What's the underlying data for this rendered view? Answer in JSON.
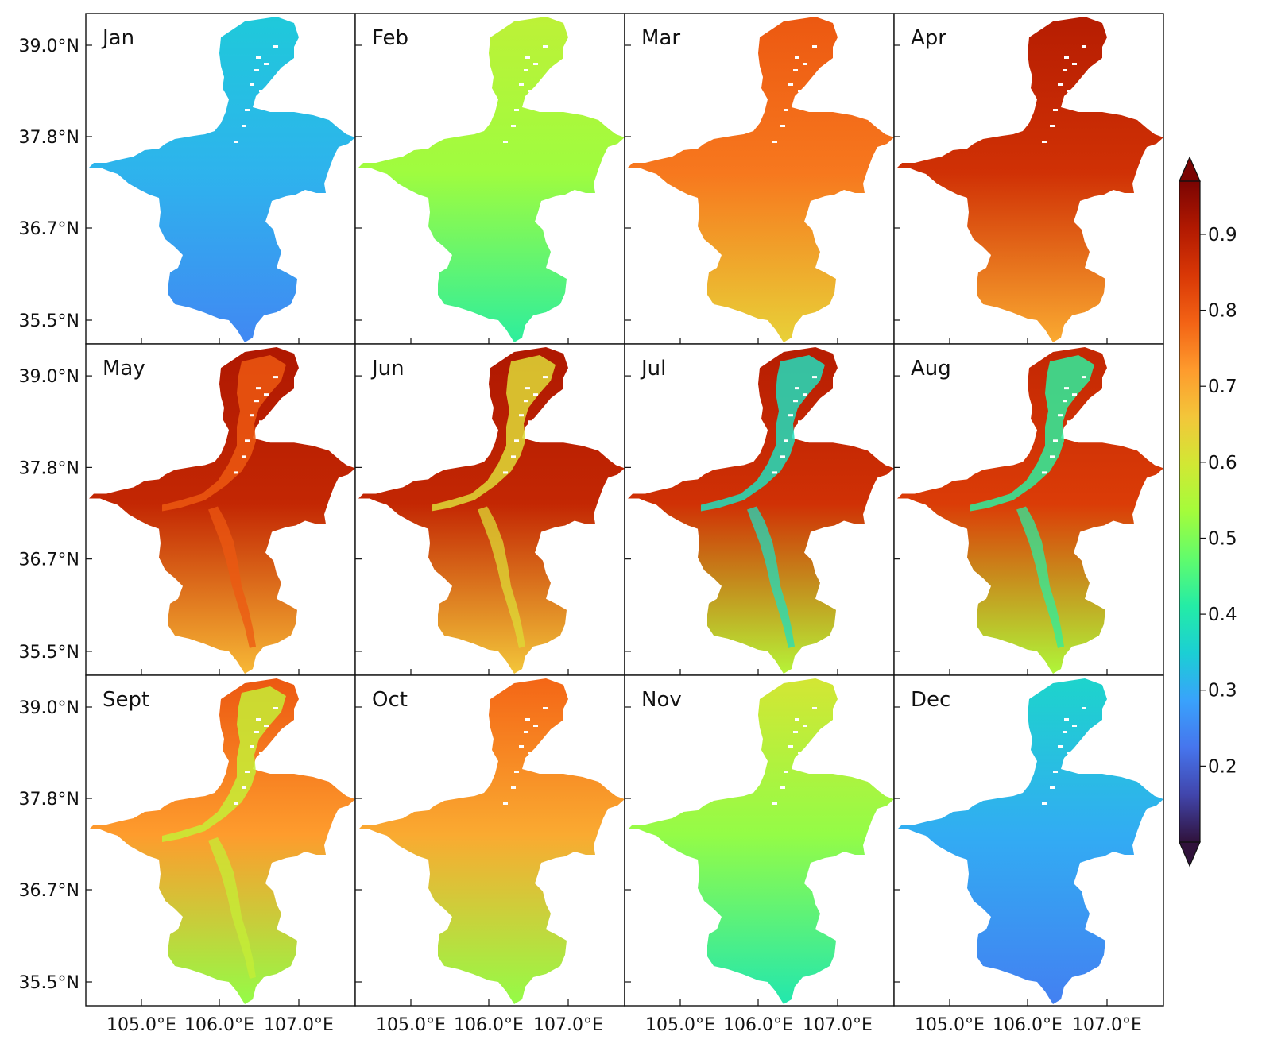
{
  "figure": {
    "colormap": [
      "#30123b",
      "#4145ab",
      "#4675ed",
      "#39a2fc",
      "#1bcfd4",
      "#24eca6",
      "#61fc6c",
      "#a4fc3b",
      "#d1e834",
      "#f3c63a",
      "#fe9b2d",
      "#f36315",
      "#d93806",
      "#b11901",
      "#7a0402"
    ],
    "colorbar": {
      "ticks": [
        "0.9",
        "0.8",
        "0.7",
        "0.6",
        "0.5",
        "0.4",
        "0.3",
        "0.2"
      ],
      "tick_values": [
        0.9,
        0.8,
        0.7,
        0.6,
        0.5,
        0.4,
        0.3,
        0.2
      ],
      "range": [
        0.1,
        0.97
      ],
      "extend": "both",
      "orientation": "vertical",
      "placement": "right"
    },
    "lat_ticks": [
      "39.0°N",
      "37.8°N",
      "36.7°N",
      "35.5°N"
    ],
    "lon_ticks": [
      "105.0°E",
      "106.0°E",
      "107.0°E"
    ],
    "grid": {
      "rows": 3,
      "cols": 4
    },
    "panels": [
      {
        "label": "Jan",
        "north": 0.34,
        "center": 0.31,
        "south": 0.25,
        "irrigated": null
      },
      {
        "label": "Feb",
        "north": 0.57,
        "center": 0.53,
        "south": 0.42,
        "irrigated": null
      },
      {
        "label": "Mar",
        "north": 0.8,
        "center": 0.76,
        "south": 0.64,
        "irrigated": null
      },
      {
        "label": "Apr",
        "north": 0.9,
        "center": 0.86,
        "south": 0.7,
        "irrigated": null
      },
      {
        "label": "May",
        "north": 0.91,
        "center": 0.88,
        "south": 0.68,
        "irrigated": 0.8
      },
      {
        "label": "Jun",
        "north": 0.91,
        "center": 0.88,
        "south": 0.66,
        "irrigated": 0.62
      },
      {
        "label": "Jul",
        "north": 0.9,
        "center": 0.86,
        "south": 0.56,
        "irrigated": 0.38
      },
      {
        "label": "Aug",
        "north": 0.88,
        "center": 0.84,
        "south": 0.55,
        "irrigated": 0.42
      },
      {
        "label": "Sept",
        "north": 0.8,
        "center": 0.72,
        "south": 0.52,
        "irrigated": 0.58
      },
      {
        "label": "Oct",
        "north": 0.78,
        "center": 0.7,
        "south": 0.52,
        "irrigated": null
      },
      {
        "label": "Nov",
        "north": 0.6,
        "center": 0.52,
        "south": 0.4,
        "irrigated": null
      },
      {
        "label": "Dec",
        "north": 0.36,
        "center": 0.3,
        "south": 0.24,
        "irrigated": null
      }
    ]
  }
}
